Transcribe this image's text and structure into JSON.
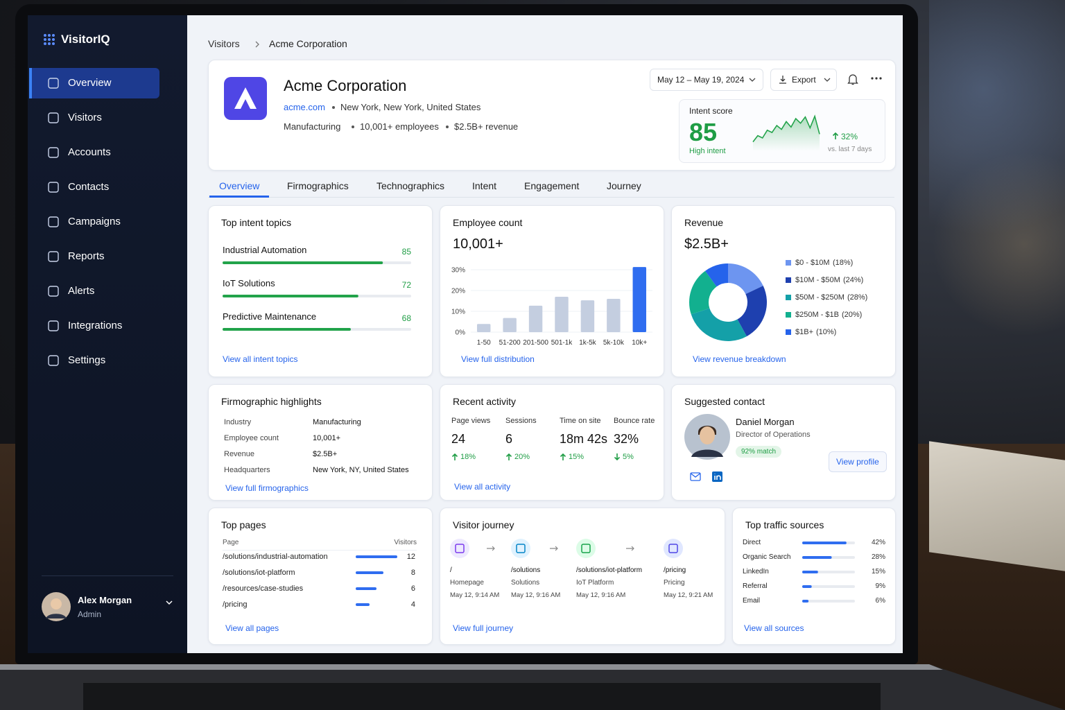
{
  "sidebar": {
    "brand": "VisitorIQ",
    "nav": [
      "Overview",
      "Visitors",
      "Accounts",
      "Contacts",
      "Campaigns",
      "Reports",
      "Alerts",
      "Integrations",
      "Settings"
    ],
    "active": 0,
    "user": {
      "name": "Alex Morgan",
      "role": "Admin"
    }
  },
  "breadcrumb": [
    "Visitors",
    "Acme Corporation"
  ],
  "toolbar": {
    "date_range": "May 12 – May 19, 2024",
    "export": "Export"
  },
  "company": {
    "name": "Acme Corporation",
    "domain": "acme.com",
    "location": "New York, New York, United States",
    "industry": "Manufacturing",
    "employees": "10,001+ employees",
    "revenue": "$2.5B+ revenue"
  },
  "intent": {
    "title": "Intent score",
    "score": 85,
    "level": "High intent",
    "change": "32%",
    "note": "vs. last 7 days",
    "trend": {
      "values": [
        12,
        20,
        17,
        27,
        24,
        33,
        28,
        38,
        31,
        42,
        36,
        44,
        30,
        45,
        22
      ],
      "ylim": [
        0,
        50
      ],
      "color": "#22a34a"
    }
  },
  "tabs": {
    "items": [
      "Overview",
      "Firmographics",
      "Technographics",
      "Intent",
      "Engagement",
      "Journey"
    ],
    "active": 0
  },
  "intent_topics": {
    "title": "Top intent topics",
    "xlim": [
      0,
      100
    ],
    "color": "#22a34a",
    "items": [
      {
        "name": "Industrial Automation",
        "score": 85
      },
      {
        "name": "IoT Solutions",
        "score": 72
      },
      {
        "name": "Predictive Maintenance",
        "score": 68
      }
    ],
    "link": "View all intent topics"
  },
  "employee_count": {
    "title": "Employee count",
    "total": "10,001+",
    "link": "View full distribution",
    "chart_data": {
      "type": "bar",
      "categories": [
        "1-50",
        "51-200",
        "201-500",
        "501-1k",
        "1k-5k",
        "5k-10k",
        "10k+"
      ],
      "values": [
        3.9,
        6.8,
        12.7,
        17,
        15.3,
        16,
        31.3
      ],
      "colors": [
        "#c4cee0",
        "#c4cee0",
        "#c4cee0",
        "#c4cee0",
        "#c4cee0",
        "#c4cee0",
        "#2f6df0"
      ],
      "ylim": [
        0,
        32
      ],
      "yticks": [
        {
          "value": 0,
          "label": "0%"
        },
        {
          "value": 10,
          "label": "10%"
        },
        {
          "value": 20,
          "label": "20%"
        },
        {
          "value": 30,
          "label": "30%"
        }
      ],
      "grid": true
    }
  },
  "revenue": {
    "title": "Revenue",
    "total": "$2.5B+",
    "link": "View revenue breakdown",
    "chart_data": {
      "type": "pie",
      "donut": true,
      "categories": [
        "$0 - $10M",
        "$10M - $50M",
        "$50M - $250M",
        "$250M - $1B",
        "$1B+"
      ],
      "values": [
        18,
        24,
        28,
        20,
        10
      ],
      "value_labels": [
        "(18%)",
        "(24%)",
        "(28%)",
        "(20%)",
        "(10%)"
      ],
      "colors": [
        "#6d95f0",
        "#1e40af",
        "#14a0a8",
        "#12b08f",
        "#2563eb"
      ]
    }
  },
  "firmographics": {
    "title": "Firmographic highlights",
    "rows": [
      [
        "Industry",
        "Manufacturing"
      ],
      [
        "Employee count",
        "10,001+"
      ],
      [
        "Revenue",
        "$2.5B+"
      ],
      [
        "Headquarters",
        "New York, NY, United States"
      ]
    ],
    "link": "View full firmographics"
  },
  "activity": {
    "title": "Recent activity",
    "metrics": [
      {
        "label": "Page views",
        "value": 24,
        "change": "18%",
        "direction": "up"
      },
      {
        "label": "Sessions",
        "value": 6,
        "change": "20%",
        "direction": "up"
      },
      {
        "label": "Time on site",
        "value": "18m 42s",
        "change": "15%",
        "direction": "up"
      },
      {
        "label": "Bounce rate",
        "value": "32%",
        "change": "5%",
        "direction": "down"
      }
    ],
    "link": "View all activity"
  },
  "contact": {
    "title": "Suggested contact",
    "name": "Daniel Morgan",
    "role": "Director of Operations",
    "match": "92% match",
    "action": "View profile"
  },
  "top_pages": {
    "title": "Top pages",
    "columns": [
      "Page",
      "Visitors"
    ],
    "xlim": [
      0,
      12
    ],
    "color": "#2f6df0",
    "rows": [
      {
        "page": "/solutions/industrial-automation",
        "visitors": 12
      },
      {
        "page": "/solutions/iot-platform",
        "visitors": 8
      },
      {
        "page": "/resources/case-studies",
        "visitors": 6
      },
      {
        "page": "/pricing",
        "visitors": 4
      }
    ],
    "link": "View all pages"
  },
  "journey": {
    "title": "Visitor journey",
    "steps": [
      {
        "path": "/",
        "label": "Homepage",
        "time": "May 12, 9:14 AM"
      },
      {
        "path": "/solutions",
        "label": "Solutions",
        "time": "May 12, 9:16 AM"
      },
      {
        "path": "/solutions/iot-platform",
        "label": "IoT Platform",
        "time": "May 12, 9:16 AM"
      },
      {
        "path": "/pricing",
        "label": "Pricing",
        "time": "May 12, 9:21 AM"
      }
    ],
    "link": "View full journey"
  },
  "traffic": {
    "title": "Top traffic sources",
    "xlim": [
      0,
      50
    ],
    "color": "#2f6df0",
    "sources": [
      {
        "name": "Direct",
        "share": 42,
        "label": "42%"
      },
      {
        "name": "Organic Search",
        "share": 28,
        "label": "28%"
      },
      {
        "name": "LinkedIn",
        "share": 15,
        "label": "15%"
      },
      {
        "name": "Referral",
        "share": 9,
        "label": "9%"
      },
      {
        "name": "Email",
        "share": 6,
        "label": "6%"
      }
    ],
    "link": "View all sources"
  }
}
